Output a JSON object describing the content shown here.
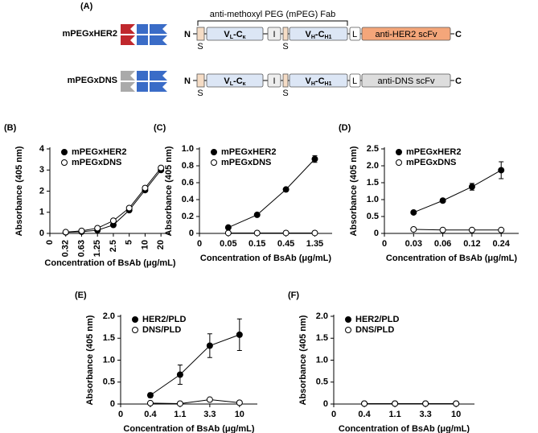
{
  "diagram": {
    "label": "(A)",
    "title": "anti-methoxyl PEG (mPEG) Fab",
    "constructs": [
      {
        "name": "mPEGxHER2",
        "n": "N",
        "c": "C",
        "s_labels": [
          "S",
          "S"
        ],
        "vl": [
          "V",
          "L",
          "-C",
          "κ"
        ],
        "i": "I",
        "vh": [
          "V",
          "H",
          "-C",
          "H1"
        ],
        "l": "L",
        "scfv": "anti-HER2 scFv"
      },
      {
        "name": "mPEGxDNS",
        "n": "N",
        "c": "C",
        "s_labels": [
          "S",
          "S"
        ],
        "vl": [
          "V",
          "L",
          "-C",
          "κ"
        ],
        "i": "I",
        "vh": [
          "V",
          "H",
          "-C",
          "H1"
        ],
        "l": "L",
        "scfv": "anti-DNS scFv"
      }
    ]
  },
  "chart_data": [
    {
      "type": "line",
      "panel": "(B)",
      "xlabel": "Concentration of BsAb (μg/mL)",
      "ylabel": "Absorbance (405 nm)",
      "categories": [
        "0",
        "0.32",
        "0.63",
        "1.25",
        "2.5",
        "5",
        "10",
        "20"
      ],
      "series": [
        {
          "name": "mPEGxHER2",
          "color": "#000000",
          "values": [
            null,
            0.05,
            0.08,
            0.15,
            0.4,
            1.1,
            2.05,
            3.0
          ]
        },
        {
          "name": "mPEGxDNS",
          "color": "#ffffff",
          "values": [
            null,
            0.06,
            0.12,
            0.25,
            0.6,
            1.2,
            2.15,
            3.1
          ]
        }
      ],
      "ylim": [
        0,
        4
      ],
      "yticks": [
        0,
        1,
        2,
        3,
        4
      ],
      "legend": "upper left"
    },
    {
      "type": "line",
      "panel": "(C)",
      "xlabel": "Concentration of BsAb (μg/mL)",
      "ylabel": "Absorbance (405 nm)",
      "categories": [
        "0",
        "0.05",
        "0.15",
        "0.45",
        "1.35"
      ],
      "series": [
        {
          "name": "mPEGxHER2",
          "color": "#000000",
          "values": [
            null,
            0.07,
            0.22,
            0.52,
            0.88
          ],
          "errors": [
            null,
            null,
            null,
            null,
            0.04
          ]
        },
        {
          "name": "mPEGxDNS",
          "color": "#ffffff",
          "values": [
            null,
            0.005,
            0.005,
            0.005,
            0.005
          ]
        }
      ],
      "ylim": [
        0,
        1
      ],
      "yticks": [
        0,
        0.2,
        0.4,
        0.6,
        0.8,
        {
          "value": 1,
          "label": "1.0"
        }
      ],
      "legend": "upper left"
    },
    {
      "type": "line",
      "panel": "(D)",
      "xlabel": "Concentration of BsAb (μg/mL)",
      "ylabel": "Absorbance (405 nm)",
      "categories": [
        "0",
        "0.03",
        "0.06",
        "0.12",
        "0.24"
      ],
      "series": [
        {
          "name": "mPEGxHER2",
          "color": "#000000",
          "values": [
            null,
            0.62,
            0.97,
            1.38,
            1.87
          ],
          "errors": [
            null,
            0.02,
            0.03,
            0.1,
            0.25
          ]
        },
        {
          "name": "mPEGxDNS",
          "color": "#ffffff",
          "values": [
            null,
            0.12,
            0.1,
            0.1,
            0.1
          ]
        }
      ],
      "ylim": [
        0,
        2.5
      ],
      "yticks": [
        0,
        0.5,
        {
          "value": 1,
          "label": "1.0"
        },
        1.5,
        {
          "value": 2,
          "label": "2.0"
        },
        2.5
      ],
      "legend": "upper left"
    },
    {
      "type": "line",
      "panel": "(E)",
      "xlabel": "Concentration of BsAb (μg/mL)",
      "ylabel": "Absorbance (405 nm)",
      "categories": [
        "0",
        "0.4",
        "1.1",
        "3.3",
        "10"
      ],
      "series": [
        {
          "name": "HER2/PLD",
          "color": "#000000",
          "values": [
            null,
            0.2,
            0.67,
            1.33,
            1.58
          ],
          "errors": [
            null,
            0.05,
            0.22,
            0.27,
            0.36
          ]
        },
        {
          "name": "DNS/PLD",
          "color": "#ffffff",
          "values": [
            null,
            0.02,
            0.01,
            0.1,
            0.03
          ]
        }
      ],
      "ylim": [
        0,
        2
      ],
      "yticks": [
        0,
        0.5,
        {
          "value": 1,
          "label": "1.0"
        },
        1.5,
        {
          "value": 2,
          "label": "2.0"
        }
      ],
      "legend": "upper left"
    },
    {
      "type": "line",
      "panel": "(F)",
      "xlabel": "Concentration of BsAb (μg/mL)",
      "ylabel": "Absorbance (405 nm)",
      "categories": [
        "0",
        "0.4",
        "1.1",
        "3.3",
        "10"
      ],
      "series": [
        {
          "name": "HER2/PLD",
          "color": "#000000",
          "values": [
            null,
            0.01,
            0.01,
            0.01,
            0.01
          ]
        },
        {
          "name": "DNS/PLD",
          "color": "#ffffff",
          "values": [
            null,
            0.01,
            0.01,
            0.01,
            0.01
          ]
        }
      ],
      "ylim": [
        0,
        2
      ],
      "yticks": [
        0,
        0.5,
        {
          "value": 1,
          "label": "1.0"
        },
        1.5,
        {
          "value": 2,
          "label": "2.0"
        }
      ],
      "legend": "upper left"
    }
  ]
}
